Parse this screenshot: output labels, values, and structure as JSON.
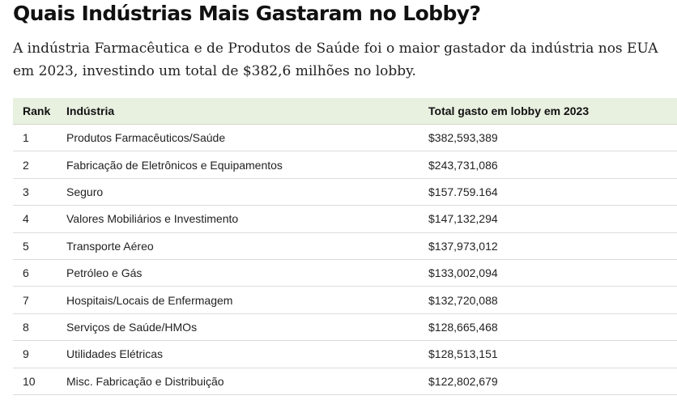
{
  "title": "Quais Indústrias Mais Gastaram no Lobby?",
  "subtitle": "A indústria Farmacêutica e de Produtos de Saúde foi o maior gastador da indústria nos EUA em 2023, investindo um total de $382,6 milhões no lobby.",
  "table": {
    "headers": {
      "rank": "Rank",
      "industry": "Indústria",
      "total": "Total gasto em lobby em 2023"
    },
    "rows": [
      {
        "rank": "1",
        "industry": "Produtos Farmacêuticos/Saúde",
        "total": "$382,593,389"
      },
      {
        "rank": "2",
        "industry": "Fabricação de Eletrônicos e Equipamentos",
        "total": "$243,731,086"
      },
      {
        "rank": "3",
        "industry": "Seguro",
        "total": "$157.759.164"
      },
      {
        "rank": "4",
        "industry": "Valores Mobiliários e Investimento",
        "total": "$147,132,294"
      },
      {
        "rank": "5",
        "industry": "Transporte Aéreo",
        "total": "$137,973,012"
      },
      {
        "rank": "6",
        "industry": "Petróleo e Gás",
        "total": "$133,002,094"
      },
      {
        "rank": "7",
        "industry": "Hospitais/Locais de Enfermagem",
        "total": "$132,720,088"
      },
      {
        "rank": "8",
        "industry": "Serviços de Saúde/HMOs",
        "total": "$128,665,468"
      },
      {
        "rank": "9",
        "industry": "Utilidades Elétricas",
        "total": "$128,513,151"
      },
      {
        "rank": "10",
        "industry": "Misc. Fabricação e Distribuição",
        "total": "$122,802,679"
      }
    ]
  }
}
